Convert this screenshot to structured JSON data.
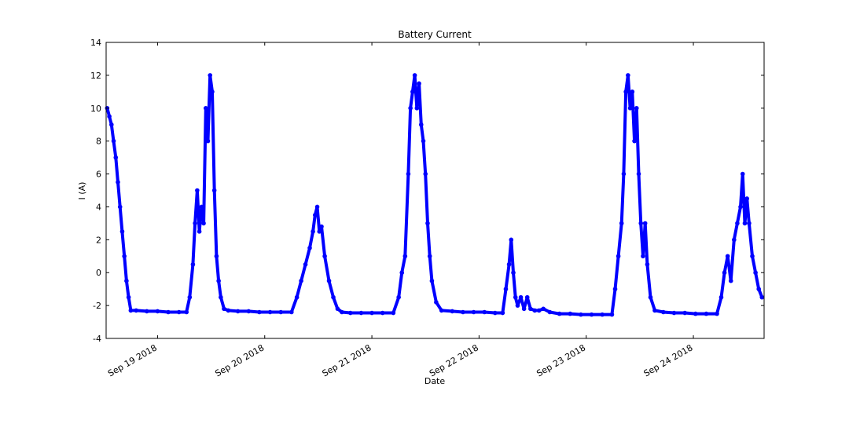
{
  "chart_data": {
    "type": "scatter",
    "title": "Battery Current",
    "x_label": "Date",
    "y_label": "I (A)",
    "color": "#0000ff",
    "x": [
      18.53,
      18.55,
      18.57,
      18.59,
      18.61,
      18.63,
      18.65,
      18.67,
      18.69,
      18.71,
      18.73,
      18.75,
      18.8,
      18.9,
      19.0,
      19.1,
      19.2,
      19.27,
      19.3,
      19.33,
      19.35,
      19.37,
      19.39,
      19.41,
      19.43,
      19.45,
      19.47,
      19.49,
      19.51,
      19.53,
      19.55,
      19.57,
      19.59,
      19.62,
      19.66,
      19.75,
      19.85,
      19.95,
      20.05,
      20.15,
      20.25,
      20.3,
      20.34,
      20.38,
      20.42,
      20.45,
      20.47,
      20.49,
      20.51,
      20.53,
      20.56,
      20.6,
      20.64,
      20.68,
      20.72,
      20.8,
      20.9,
      21.0,
      21.1,
      21.2,
      21.25,
      21.28,
      21.31,
      21.34,
      21.36,
      21.38,
      21.4,
      21.42,
      21.44,
      21.46,
      21.48,
      21.5,
      21.52,
      21.54,
      21.56,
      21.6,
      21.65,
      21.75,
      21.85,
      21.95,
      22.05,
      22.15,
      22.22,
      22.25,
      22.28,
      22.3,
      22.32,
      22.34,
      22.36,
      22.39,
      22.42,
      22.45,
      22.48,
      22.52,
      22.56,
      22.6,
      22.66,
      22.75,
      22.85,
      22.95,
      23.05,
      23.15,
      23.24,
      23.27,
      23.3,
      23.33,
      23.35,
      23.37,
      23.39,
      23.41,
      23.43,
      23.45,
      23.47,
      23.49,
      23.51,
      23.53,
      23.55,
      23.57,
      23.6,
      23.64,
      23.72,
      23.82,
      23.92,
      24.02,
      24.12,
      24.22,
      24.26,
      24.29,
      24.32,
      24.35,
      24.38,
      24.41,
      24.44,
      24.46,
      24.48,
      24.5,
      24.52,
      24.55,
      24.58,
      24.61,
      24.64
    ],
    "values": [
      10,
      9.5,
      9,
      8,
      7,
      5.5,
      4,
      2.5,
      1,
      -0.5,
      -1.5,
      -2.3,
      -2.3,
      -2.35,
      -2.35,
      -2.4,
      -2.4,
      -2.4,
      -1.5,
      0.5,
      3,
      5,
      2.5,
      4,
      3,
      10,
      8,
      12,
      11,
      5,
      1,
      -0.5,
      -1.5,
      -2.2,
      -2.3,
      -2.35,
      -2.35,
      -2.4,
      -2.4,
      -2.4,
      -2.4,
      -1.5,
      -0.5,
      0.5,
      1.5,
      2.5,
      3.5,
      4,
      2.5,
      2.8,
      1,
      -0.5,
      -1.5,
      -2.2,
      -2.4,
      -2.45,
      -2.45,
      -2.45,
      -2.45,
      -2.45,
      -1.5,
      0,
      1,
      6,
      10,
      11,
      12,
      10,
      11.5,
      9,
      8,
      6,
      3,
      1,
      -0.5,
      -1.8,
      -2.3,
      -2.35,
      -2.4,
      -2.4,
      -2.4,
      -2.45,
      -2.45,
      -1,
      0.5,
      2,
      0,
      -1.5,
      -2,
      -1.5,
      -2.2,
      -1.5,
      -2.2,
      -2.3,
      -2.3,
      -2.2,
      -2.4,
      -2.5,
      -2.5,
      -2.55,
      -2.55,
      -2.55,
      -2.55,
      -1,
      1,
      3,
      6,
      11,
      12,
      10,
      11,
      8,
      10,
      6,
      3,
      1,
      3,
      0.5,
      -1.5,
      -2.3,
      -2.4,
      -2.45,
      -2.45,
      -2.5,
      -2.5,
      -2.5,
      -1.5,
      0,
      1,
      -0.5,
      2,
      3,
      4,
      6,
      3,
      4.5,
      3,
      1,
      0,
      -1,
      -1.5
    ],
    "xlim": [
      18.52,
      24.66
    ],
    "xticks": [
      {
        "value": 19,
        "label": "Sep 19 2018"
      },
      {
        "value": 20,
        "label": "Sep 20 2018"
      },
      {
        "value": 21,
        "label": "Sep 21 2018"
      },
      {
        "value": 22,
        "label": "Sep 22 2018"
      },
      {
        "value": 23,
        "label": "Sep 23 2018"
      },
      {
        "value": 24,
        "label": "Sep 24 2018"
      }
    ],
    "ylim": [
      -4,
      14
    ],
    "yticks": [
      -4,
      -2,
      0,
      2,
      4,
      6,
      8,
      10,
      12,
      14
    ],
    "grid": false
  }
}
